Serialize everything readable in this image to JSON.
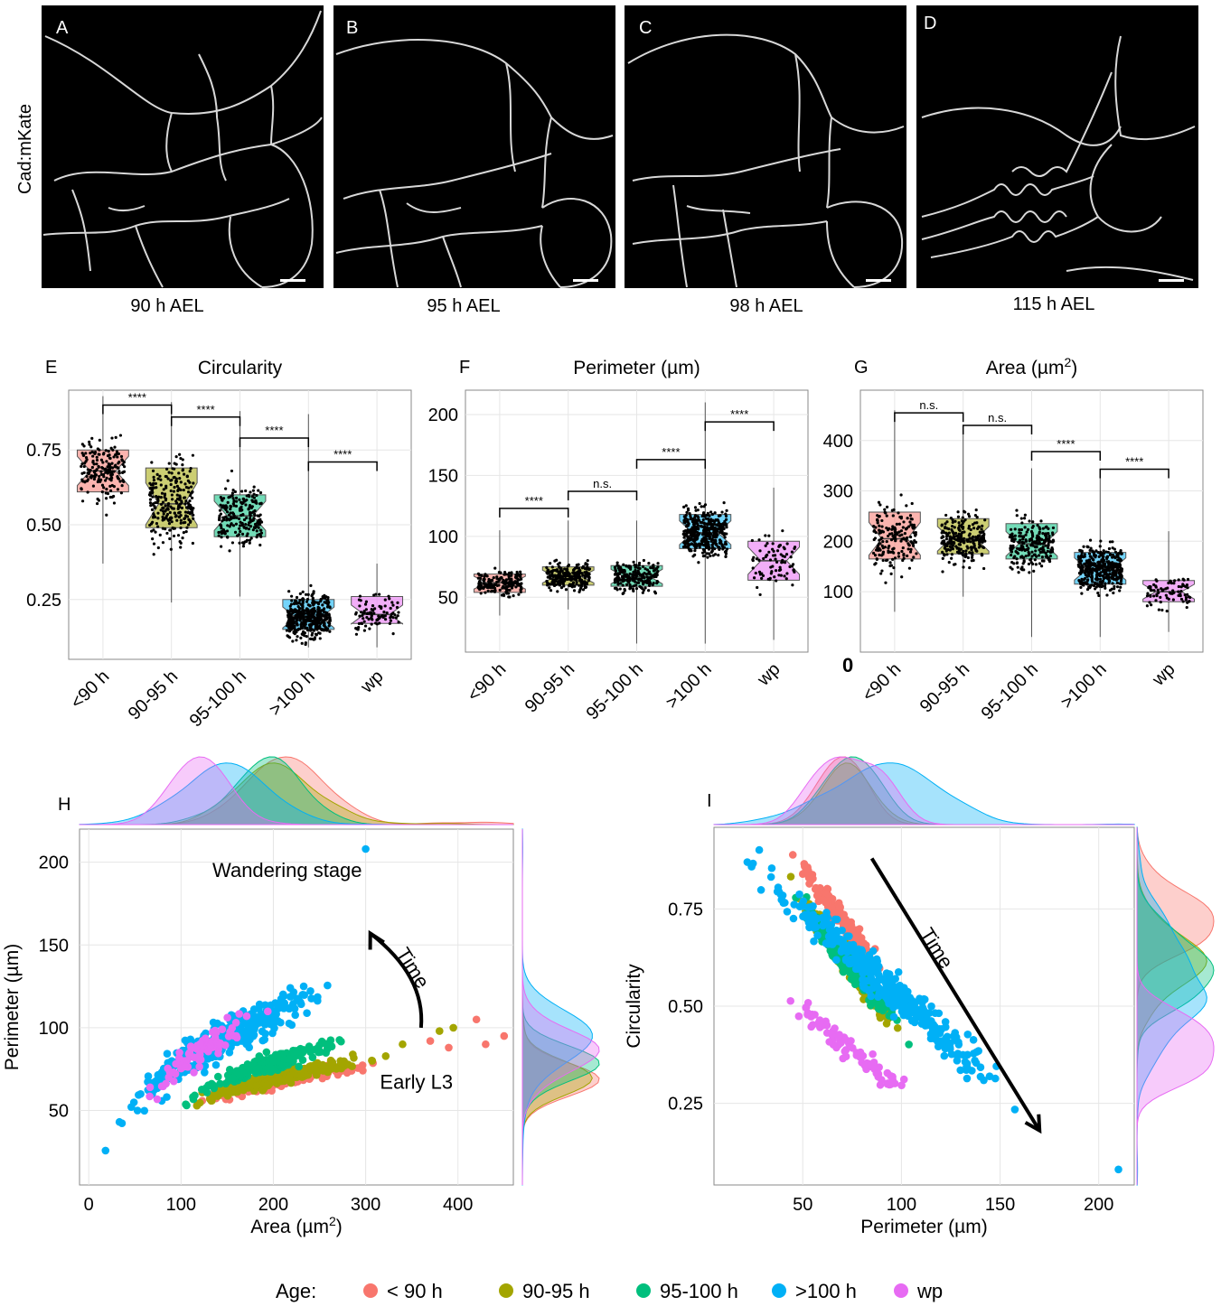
{
  "micrographs": {
    "stain_label": "Cad:mKate",
    "panels": [
      {
        "letter": "A",
        "caption": "90 h AEL"
      },
      {
        "letter": "B",
        "caption": "95 h AEL"
      },
      {
        "letter": "C",
        "caption": "98 h AEL"
      },
      {
        "letter": "D",
        "caption": "115 h AEL"
      }
    ]
  },
  "colors": {
    "lt90": "#F8766D",
    "g90_95": "#A3A500",
    "g95_100": "#00BF7D",
    "gt100": "#00B0F6",
    "wp": "#E76BF3"
  },
  "chart_data": [
    {
      "id": "E",
      "type": "box",
      "title": "Circularity",
      "xlabel": "",
      "ylabel": "",
      "categories": [
        "<90 h",
        "90-95 h",
        "95-100 h",
        ">100 h",
        "wp"
      ],
      "ylim": [
        0.05,
        0.95
      ],
      "yticks": [
        0.25,
        0.5,
        0.75
      ],
      "ytick_labels": [
        "0.25",
        "0.50",
        "0.75"
      ],
      "boxes": [
        {
          "q1": 0.61,
          "median": 0.68,
          "q3": 0.75,
          "low": 0.37,
          "high": 0.93
        },
        {
          "q1": 0.49,
          "median": 0.57,
          "q3": 0.69,
          "low": 0.24,
          "high": 0.91
        },
        {
          "q1": 0.46,
          "median": 0.53,
          "q3": 0.6,
          "low": 0.26,
          "high": 0.88
        },
        {
          "q1": 0.15,
          "median": 0.19,
          "q3": 0.25,
          "low": 0.09,
          "high": 0.87
        },
        {
          "q1": 0.17,
          "median": 0.2,
          "q3": 0.26,
          "low": 0.09,
          "high": 0.37
        }
      ],
      "n_points": [
        180,
        260,
        230,
        420,
        90
      ],
      "comparisons": [
        {
          "from": 0,
          "to": 1,
          "label": "****",
          "y": 0.9
        },
        {
          "from": 1,
          "to": 2,
          "label": "****",
          "y": 0.86
        },
        {
          "from": 2,
          "to": 3,
          "label": "****",
          "y": 0.79
        },
        {
          "from": 3,
          "to": 4,
          "label": "****",
          "y": 0.71
        }
      ]
    },
    {
      "id": "F",
      "type": "box",
      "title": "Perimeter (µm)",
      "xlabel": "",
      "ylabel": "",
      "categories": [
        "<90 h",
        "90-95 h",
        "95-100 h",
        ">100 h",
        "wp"
      ],
      "ylim": [
        5,
        220
      ],
      "yticks": [
        50,
        100,
        150,
        200
      ],
      "ytick_labels": [
        "50",
        "100",
        "150",
        "200"
      ],
      "boxes": [
        {
          "q1": 54,
          "median": 62,
          "q3": 69,
          "low": 35,
          "high": 105
        },
        {
          "q1": 60,
          "median": 67,
          "q3": 75,
          "low": 40,
          "high": 113
        },
        {
          "q1": 59,
          "median": 67,
          "q3": 76,
          "low": 12,
          "high": 113
        },
        {
          "q1": 90,
          "median": 103,
          "q3": 118,
          "low": 12,
          "high": 210
        },
        {
          "q1": 64,
          "median": 80,
          "q3": 96,
          "low": 15,
          "high": 140
        }
      ],
      "n_points": [
        180,
        240,
        220,
        420,
        80
      ],
      "comparisons": [
        {
          "from": 0,
          "to": 1,
          "label": "****",
          "y": 123
        },
        {
          "from": 1,
          "to": 2,
          "label": "n.s.",
          "y": 137
        },
        {
          "from": 2,
          "to": 3,
          "label": "****",
          "y": 163
        },
        {
          "from": 3,
          "to": 4,
          "label": "****",
          "y": 194
        }
      ]
    },
    {
      "id": "G",
      "type": "box",
      "title": "Area (µm",
      "title_sup": "2",
      "title_end": ")",
      "xlabel": "",
      "ylabel": "",
      "categories": [
        "<90 h",
        "90-95 h",
        "95-100 h",
        ">100 h",
        "wp"
      ],
      "ylim": [
        -20,
        500
      ],
      "yticks": [
        100,
        200,
        300,
        400
      ],
      "ytick_labels": [
        "100",
        "200",
        "300",
        "400"
      ],
      "zero_label": "0",
      "boxes": [
        {
          "q1": 165,
          "median": 205,
          "q3": 258,
          "low": 60,
          "high": 460
        },
        {
          "q1": 175,
          "median": 205,
          "q3": 245,
          "low": 90,
          "high": 420
        },
        {
          "q1": 165,
          "median": 195,
          "q3": 235,
          "low": 10,
          "high": 345
        },
        {
          "q1": 115,
          "median": 145,
          "q3": 178,
          "low": 10,
          "high": 330
        },
        {
          "q1": 80,
          "median": 100,
          "q3": 122,
          "low": 20,
          "high": 220
        }
      ],
      "n_points": [
        180,
        240,
        230,
        420,
        80
      ],
      "comparisons": [
        {
          "from": 0,
          "to": 1,
          "label": "n.s.",
          "y": 455
        },
        {
          "from": 1,
          "to": 2,
          "label": "n.s.",
          "y": 430
        },
        {
          "from": 2,
          "to": 3,
          "label": "****",
          "y": 378
        },
        {
          "from": 3,
          "to": 4,
          "label": "****",
          "y": 343
        }
      ]
    },
    {
      "id": "H",
      "type": "scatter",
      "xlabel": "Area (µm",
      "xlabel_sup": "2",
      "xlabel_end": ")",
      "ylabel": "Perimeter (µm)",
      "xlim": [
        -10,
        460
      ],
      "ylim": [
        5,
        220
      ],
      "xticks": [
        0,
        100,
        200,
        300,
        400
      ],
      "xtick_labels": [
        "0",
        "100",
        "200",
        "300",
        "400"
      ],
      "yticks": [
        50,
        100,
        150,
        200
      ],
      "ytick_labels": [
        "50",
        "100",
        "150",
        "200"
      ],
      "annotations": [
        {
          "text": "Wandering stage",
          "x": 215,
          "y": 191
        },
        {
          "text": "Time",
          "x": 345,
          "y": 134,
          "rotate": 58
        },
        {
          "text": "Early L3",
          "x": 355,
          "y": 63
        }
      ],
      "arrow": {
        "from": [
          360,
          100
        ],
        "to": [
          305,
          157
        ]
      },
      "series": [
        {
          "name": "< 90 h",
          "color": "#F8766D",
          "n": 170,
          "x_range": [
            90,
            340
          ],
          "y_range": [
            40,
            95
          ],
          "outliers": [
            [
              420,
              105
            ],
            [
              450,
              95
            ],
            [
              430,
              90
            ],
            [
              370,
              92
            ],
            [
              390,
              88
            ]
          ]
        },
        {
          "name": "90-95 h",
          "color": "#A3A500",
          "n": 230,
          "x_range": [
            85,
            340
          ],
          "y_range": [
            38,
            100
          ],
          "outliers": [
            [
              395,
              100
            ],
            [
              380,
              98
            ],
            [
              340,
              90
            ]
          ]
        },
        {
          "name": "95-100 h",
          "color": "#00BF7D",
          "n": 210,
          "x_range": [
            90,
            300
          ],
          "y_range": [
            40,
            112
          ]
        },
        {
          "name": ">100 h",
          "color": "#00B0F6",
          "n": 380,
          "x_range": [
            10,
            280
          ],
          "y_range": [
            12,
            165
          ],
          "outliers": [
            [
              300,
              208
            ]
          ]
        },
        {
          "name": "wp",
          "color": "#E76BF3",
          "n": 80,
          "x_range": [
            40,
            200
          ],
          "y_range": [
            25,
            140
          ]
        }
      ]
    },
    {
      "id": "I",
      "type": "scatter",
      "xlabel": "Perimeter (µm)",
      "ylabel": "Circularity",
      "xlim": [
        5,
        218
      ],
      "ylim": [
        0.04,
        0.96
      ],
      "xticks": [
        50,
        100,
        150,
        200
      ],
      "xtick_labels": [
        "50",
        "100",
        "150",
        "200"
      ],
      "yticks": [
        0.25,
        0.5,
        0.75
      ],
      "ytick_labels": [
        "0.25",
        "0.50",
        "0.75"
      ],
      "annotations": [
        {
          "text": "Time",
          "x": 115,
          "y": 0.64,
          "rotate": 58
        }
      ],
      "arrow": {
        "from": [
          85,
          0.88
        ],
        "to": [
          170,
          0.18
        ]
      },
      "series": [
        {
          "name": "< 90 h",
          "color": "#F8766D",
          "n": 170,
          "x_range": [
            40,
            100
          ],
          "y_range": [
            0.45,
            0.92
          ]
        },
        {
          "name": "90-95 h",
          "color": "#A3A500",
          "n": 230,
          "x_range": [
            40,
            105
          ],
          "y_range": [
            0.3,
            0.85
          ]
        },
        {
          "name": "95-100 h",
          "color": "#00BF7D",
          "n": 210,
          "x_range": [
            40,
            110
          ],
          "y_range": [
            0.3,
            0.82
          ]
        },
        {
          "name": ">100 h",
          "color": "#00B0F6",
          "n": 380,
          "x_range": [
            10,
            170
          ],
          "y_range": [
            0.08,
            0.92
          ],
          "outliers": [
            [
              210,
              0.08
            ]
          ]
        },
        {
          "name": "wp",
          "color": "#E76BF3",
          "n": 80,
          "x_range": [
            20,
            130
          ],
          "y_range": [
            0.1,
            0.6
          ]
        }
      ]
    }
  ],
  "legend": {
    "title": "Age:",
    "placement": "bottom",
    "items": [
      {
        "label": "< 90 h",
        "color": "#F8766D"
      },
      {
        "label": "90-95 h",
        "color": "#A3A500"
      },
      {
        "label": "95-100 h",
        "color": "#00BF7D"
      },
      {
        "label": ">100 h",
        "color": "#00B0F6"
      },
      {
        "label": "wp",
        "color": "#E76BF3"
      }
    ]
  }
}
